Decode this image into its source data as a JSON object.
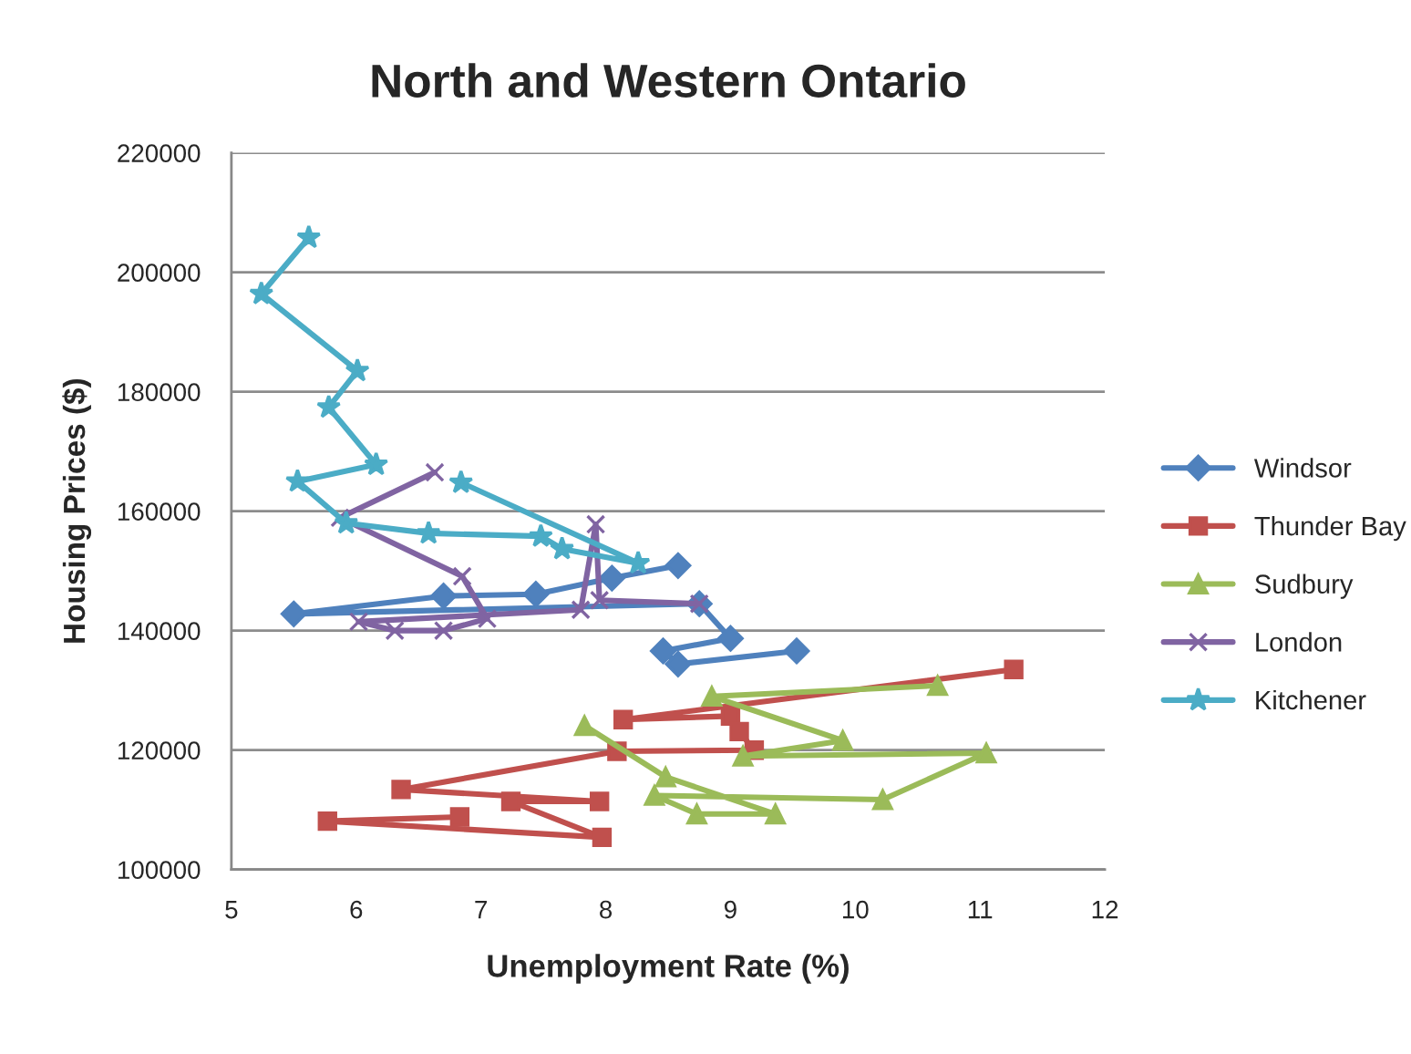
{
  "chart_data": {
    "type": "line",
    "title": "North and Western Ontario",
    "xlabel": "Unemployment Rate (%)",
    "ylabel": "Housing Prices ($)",
    "xlim": [
      5,
      12
    ],
    "xticks": [
      5,
      6,
      7,
      8,
      9,
      10,
      11,
      12
    ],
    "ylim": [
      100000,
      220000
    ],
    "yticks": [
      100000,
      120000,
      140000,
      160000,
      180000,
      200000,
      220000
    ],
    "grid": "y",
    "legend": "right",
    "series": [
      {
        "name": "Windsor",
        "color": "#4f81bd",
        "marker": "diamond",
        "x": [
          9.53,
          8.58,
          8.46,
          9.0,
          8.75,
          5.5,
          6.7,
          7.44,
          8.05,
          8.58
        ],
        "values": [
          136600,
          134400,
          136600,
          138700,
          144500,
          142800,
          145800,
          146100,
          148800,
          150900
        ]
      },
      {
        "name": "Thunder Bay",
        "color": "#c0504d",
        "marker": "square",
        "x": [
          11.27,
          8.14,
          9.0,
          9.07,
          9.19,
          8.09,
          6.36,
          7.95,
          7.24,
          7.97,
          5.77,
          6.83
        ],
        "values": [
          133500,
          125100,
          125700,
          123100,
          120000,
          119800,
          113400,
          111400,
          111400,
          105400,
          108100,
          108800
        ]
      },
      {
        "name": "Sudbury",
        "color": "#9bbb59",
        "marker": "triangle",
        "x": [
          7.83,
          8.48,
          9.36,
          8.73,
          8.39,
          10.22,
          11.05,
          9.1,
          9.9,
          8.85,
          10.66
        ],
        "values": [
          124100,
          115500,
          109300,
          109300,
          112400,
          111700,
          119500,
          119000,
          121600,
          129000,
          130800
        ]
      },
      {
        "name": "London",
        "color": "#8064a2",
        "marker": "cross",
        "x": [
          6.63,
          5.87,
          6.85,
          7.05,
          6.7,
          6.31,
          6.02,
          7.8,
          7.92,
          7.95,
          8.75
        ],
        "values": [
          166500,
          158900,
          149100,
          142000,
          140000,
          140000,
          141500,
          143500,
          157800,
          145100,
          144500
        ]
      },
      {
        "name": "Kitchener",
        "color": "#4bacc6",
        "marker": "star",
        "x": [
          5.62,
          5.24,
          6.01,
          5.78,
          6.16,
          5.53,
          5.92,
          6.58,
          7.48,
          7.65,
          8.26,
          6.84
        ],
        "values": [
          205800,
          196400,
          183500,
          177400,
          167800,
          165000,
          158000,
          156300,
          155800,
          153700,
          151300,
          164800
        ]
      }
    ]
  }
}
